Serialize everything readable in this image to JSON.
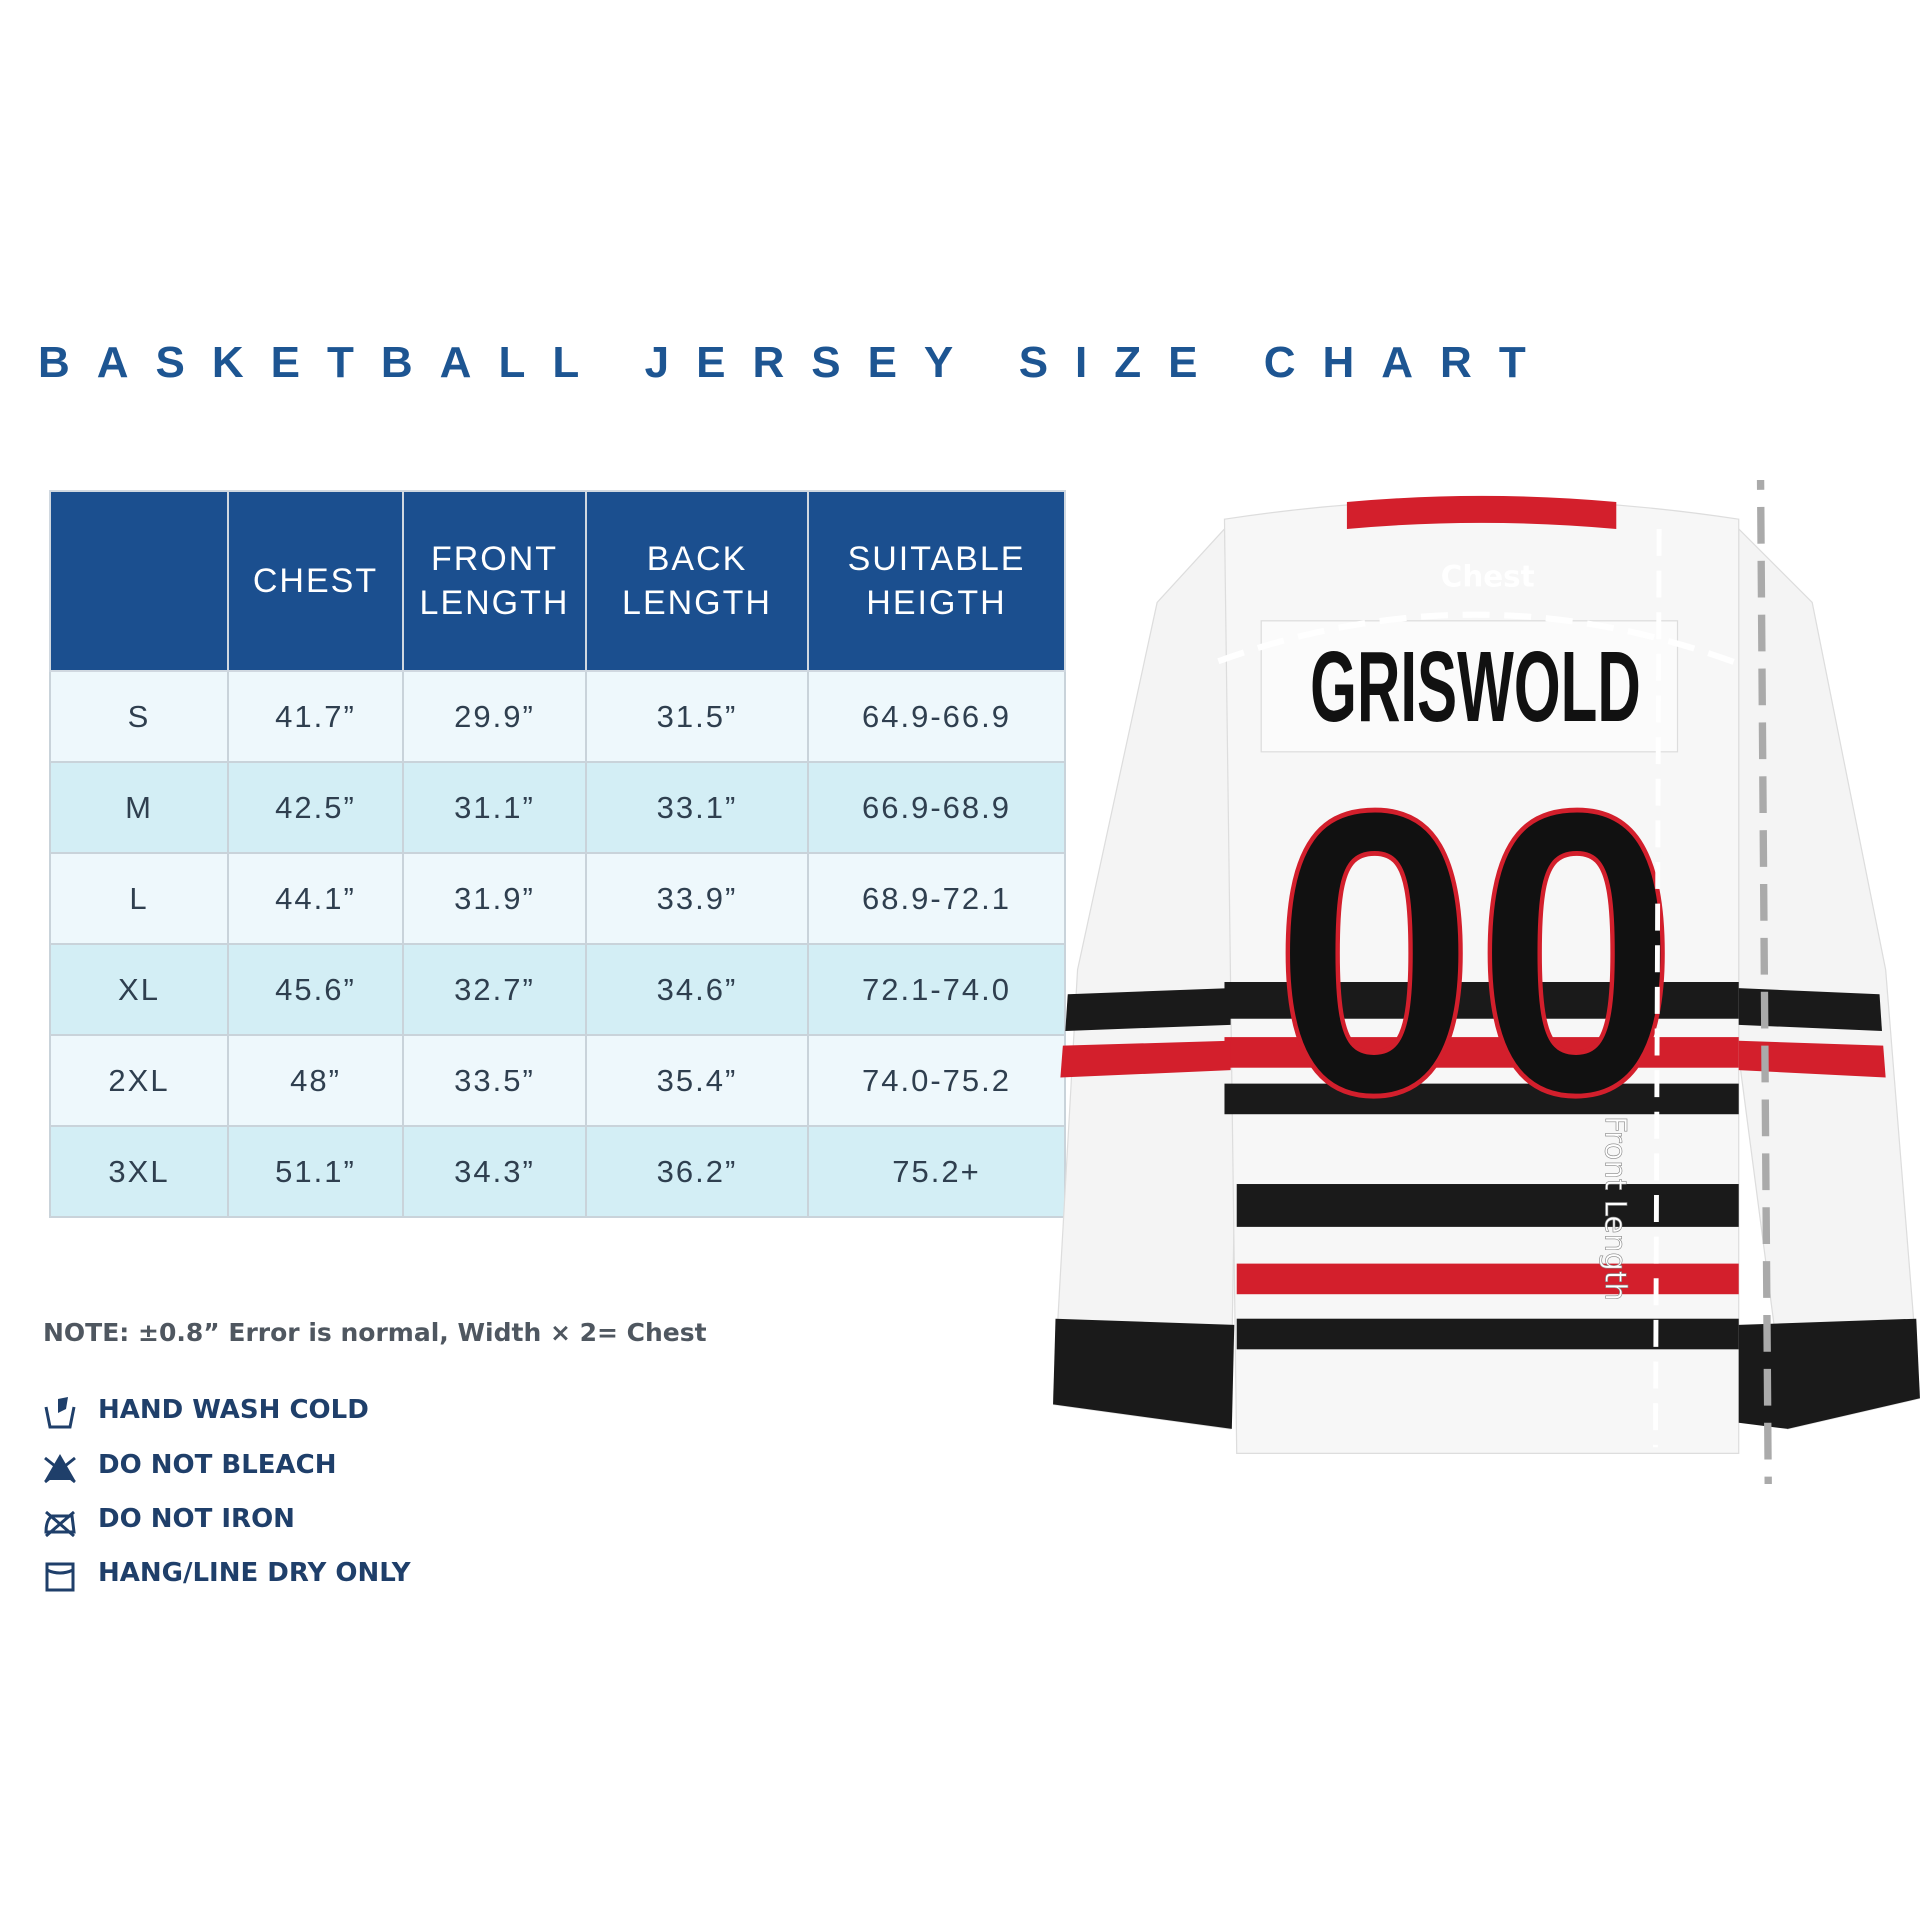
{
  "title": "BASKETBALL JERSEY SIZE CHART",
  "table": {
    "headers": [
      "",
      "CHEST",
      "FRONT\nLENGTH",
      "BACK\nLENGTH",
      "SUITABLE\nHEIGTH"
    ],
    "rows": [
      [
        "S",
        "41.7”",
        "29.9”",
        "31.5”",
        "64.9-66.9"
      ],
      [
        "M",
        "42.5”",
        "31.1”",
        "33.1”",
        "66.9-68.9"
      ],
      [
        "L",
        "44.1”",
        "31.9”",
        "33.9”",
        "68.9-72.1"
      ],
      [
        "XL",
        "45.6”",
        "32.7”",
        "34.6”",
        "72.1-74.0"
      ],
      [
        "2XL",
        "48”",
        "33.5”",
        "35.4”",
        "74.0-75.2"
      ],
      [
        "3XL",
        "51.1”",
        "34.3”",
        "36.2”",
        "75.2+"
      ]
    ]
  },
  "note": "NOTE: ±0.8” Error is normal, Width × 2= Chest",
  "care": [
    "HAND WASH COLD",
    "DO NOT BLEACH",
    "DO NOT IRON",
    "HANG/LINE DRY ONLY"
  ],
  "jersey": {
    "name": "GRISWOLD",
    "number": "00",
    "chest_label": "Chest",
    "length_label": "Front Length"
  }
}
